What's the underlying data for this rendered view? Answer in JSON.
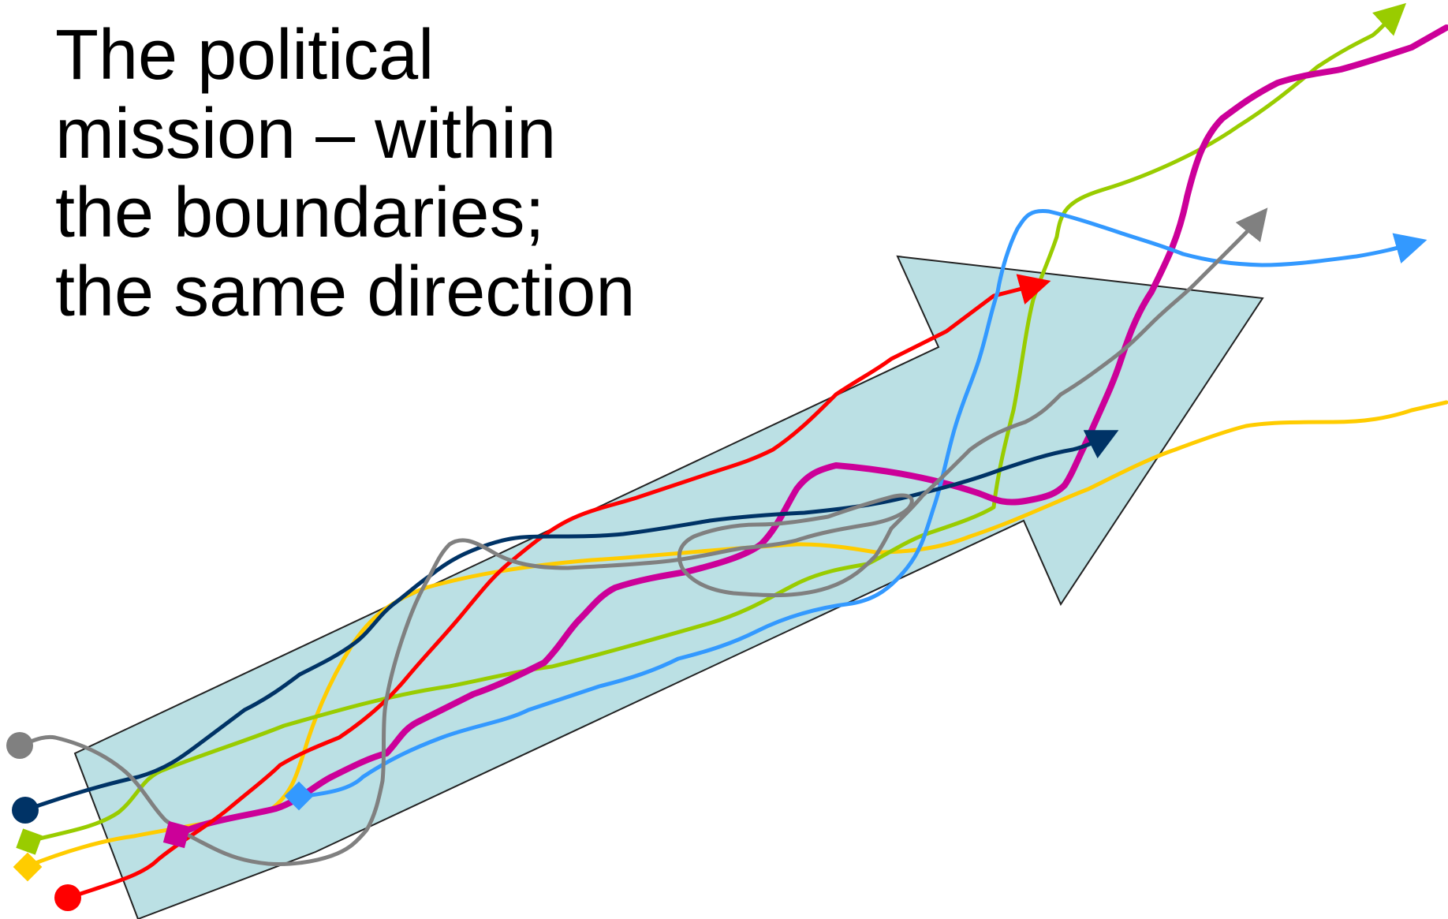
{
  "title": {
    "lines": [
      "The political",
      "mission – within",
      "the boundaries;",
      "the same direction"
    ]
  },
  "arrow": {
    "fill": "#bbe0e4",
    "stroke": "#222222"
  },
  "paths": [
    {
      "id": "gray",
      "color": "#808080",
      "start_marker": "circle",
      "end_marker": "arrow"
    },
    {
      "id": "navy",
      "color": "#003366",
      "start_marker": "circle",
      "end_marker": "arrow"
    },
    {
      "id": "green",
      "color": "#99cc00",
      "start_marker": "square",
      "end_marker": "arrow"
    },
    {
      "id": "yellow",
      "color": "#ffcc00",
      "start_marker": "square",
      "end_marker": "none"
    },
    {
      "id": "red",
      "color": "#ff0000",
      "start_marker": "circle",
      "end_marker": "arrow"
    },
    {
      "id": "magenta",
      "color": "#cc0099",
      "start_marker": "square",
      "end_marker": "none"
    },
    {
      "id": "blue",
      "color": "#3399ff",
      "start_marker": "square",
      "end_marker": "arrow"
    }
  ]
}
